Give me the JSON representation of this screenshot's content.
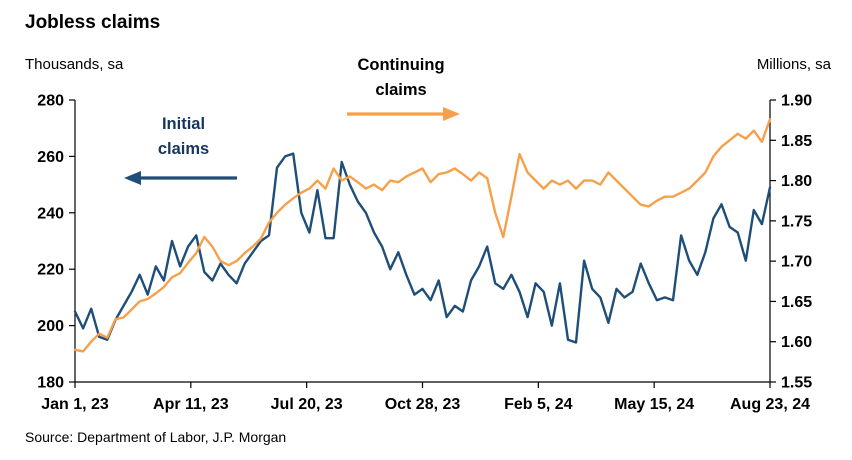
{
  "title": "Jobless claims",
  "units_left": "Thousands, sa",
  "units_right": "Millions, sa",
  "source": "Source: Department of Labor, J.P. Morgan",
  "annotations": {
    "initial": {
      "line1": "Initial",
      "line2": "claims"
    },
    "continuing": {
      "line1": "Continuing",
      "line2": "claims"
    }
  },
  "colors": {
    "initial_claims_line": "#1f4e79",
    "continuing_claims_line": "#f6a04b",
    "axis": "#000000"
  },
  "chart_data": {
    "type": "line",
    "title": "Jobless claims",
    "x_tick_labels": [
      "Jan 1, 23",
      "Apr 11, 23",
      "Jul 20, 23",
      "Oct 28, 23",
      "Feb 5, 24",
      "May 15, 24",
      "Aug 23, 24"
    ],
    "left_axis": {
      "label": "Thousands, sa",
      "range": [
        180,
        280
      ],
      "tick_labels": [
        "180",
        "200",
        "220",
        "240",
        "260",
        "280"
      ]
    },
    "right_axis": {
      "label": "Millions, sa",
      "range": [
        1.55,
        1.9
      ],
      "tick_labels": [
        "1.55",
        "1.60",
        "1.65",
        "1.70",
        "1.75",
        "1.80",
        "1.85",
        "1.90"
      ]
    },
    "grid": false,
    "legend": "annotated arrows on plot",
    "series": [
      {
        "name": "Initial claims",
        "axis": "left",
        "units": "thousands",
        "color": "#1f4e79",
        "values": [
          205,
          199,
          206,
          196,
          195,
          202,
          207,
          212,
          218,
          211,
          221,
          216,
          230,
          221,
          228,
          232,
          219,
          216,
          222,
          218,
          215,
          222,
          226,
          230,
          232,
          256,
          260,
          261,
          240,
          233,
          248,
          231,
          231,
          258,
          250,
          244,
          240,
          233,
          228,
          220,
          226,
          218,
          211,
          213,
          209,
          216,
          203,
          207,
          205,
          216,
          221,
          228,
          215,
          213,
          218,
          212,
          203,
          215,
          212,
          200,
          215,
          195,
          194,
          223,
          213,
          210,
          201,
          213,
          210,
          212,
          222,
          215,
          209,
          210,
          209,
          232,
          223,
          218,
          226,
          238,
          243,
          235,
          233,
          223,
          241,
          236,
          249
        ]
      },
      {
        "name": "Continuing claims",
        "axis": "right",
        "units": "millions",
        "color": "#f6a04b",
        "values": [
          1.59,
          1.588,
          1.6,
          1.61,
          1.605,
          1.628,
          1.63,
          1.64,
          1.65,
          1.653,
          1.66,
          1.668,
          1.68,
          1.685,
          1.698,
          1.71,
          1.73,
          1.718,
          1.7,
          1.695,
          1.7,
          1.71,
          1.718,
          1.728,
          1.748,
          1.76,
          1.77,
          1.778,
          1.785,
          1.79,
          1.8,
          1.79,
          1.815,
          1.8,
          1.805,
          1.798,
          1.79,
          1.795,
          1.788,
          1.8,
          1.798,
          1.805,
          1.81,
          1.815,
          1.798,
          1.808,
          1.81,
          1.815,
          1.808,
          1.8,
          1.81,
          1.803,
          1.76,
          1.73,
          1.78,
          1.833,
          1.81,
          1.8,
          1.79,
          1.8,
          1.795,
          1.8,
          1.79,
          1.8,
          1.8,
          1.795,
          1.81,
          1.8,
          1.79,
          1.78,
          1.77,
          1.768,
          1.775,
          1.78,
          1.78,
          1.785,
          1.79,
          1.8,
          1.81,
          1.83,
          1.842,
          1.85,
          1.858,
          1.852,
          1.862,
          1.848,
          1.876
        ]
      }
    ]
  }
}
